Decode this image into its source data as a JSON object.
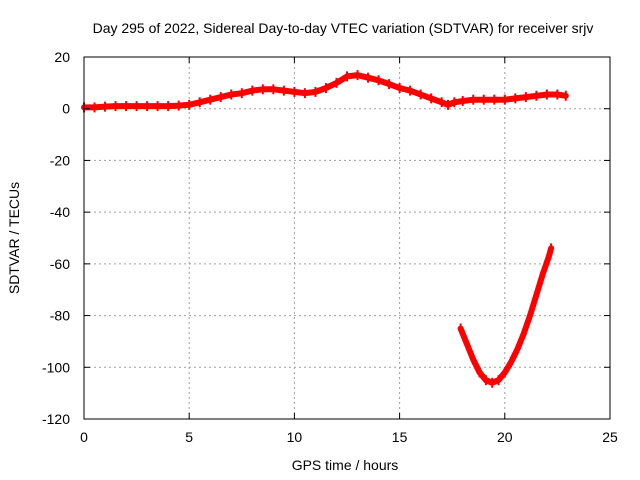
{
  "chart_data": {
    "type": "line",
    "title": "Day 295 of 2022, Sidereal Day-to-day VTEC variation (SDTVAR) for receiver srjv",
    "xlabel": "GPS time / hours",
    "ylabel": "SDTVAR / TECUs",
    "xlim": [
      0,
      25
    ],
    "ylim": [
      -120,
      20
    ],
    "xticks": [
      0,
      5,
      10,
      15,
      20,
      25
    ],
    "yticks": [
      -120,
      -100,
      -80,
      -60,
      -40,
      -20,
      0,
      20
    ],
    "grid": true,
    "series_color": "#ff0000",
    "series": [
      {
        "x": [
          0,
          0.5,
          1,
          1.5,
          2,
          2.5,
          3,
          3.5,
          4,
          4.5,
          5,
          5.5,
          6,
          6.5,
          7,
          7.5,
          8,
          8.5,
          9,
          9.5,
          10,
          10.5,
          11,
          11.5,
          12,
          12.5,
          13,
          13.5,
          14,
          14.5,
          15,
          15.5,
          16,
          16.5,
          17,
          17.3,
          17.6,
          18,
          18.5,
          19,
          19.5,
          20,
          20.5,
          21,
          21.5,
          22,
          22.5,
          22.9
        ],
        "y": [
          0.5,
          0.5,
          0.8,
          1.0,
          1.0,
          1.0,
          1.0,
          1.0,
          1.0,
          1.2,
          1.5,
          2.5,
          3.5,
          4.5,
          5.5,
          6.0,
          7.0,
          7.5,
          7.5,
          7.0,
          6.5,
          6.0,
          6.5,
          8.0,
          10.0,
          12.5,
          13.0,
          12.0,
          11.0,
          9.5,
          8.0,
          7.0,
          5.5,
          4.0,
          2.5,
          1.5,
          2.5,
          3.0,
          3.5,
          3.5,
          3.5,
          3.5,
          4.0,
          4.5,
          5.0,
          5.5,
          5.5,
          5.0
        ]
      },
      {
        "x": [
          17.9,
          18.2,
          18.5,
          18.8,
          19.1,
          19.4,
          19.7,
          20.0,
          20.3,
          20.6,
          20.9,
          21.2,
          21.5,
          21.8,
          22.1,
          22.2
        ],
        "y": [
          -85,
          -91,
          -97,
          -102,
          -105,
          -106,
          -105,
          -102,
          -98,
          -93,
          -87,
          -80,
          -72,
          -64,
          -57,
          -54
        ]
      }
    ]
  }
}
